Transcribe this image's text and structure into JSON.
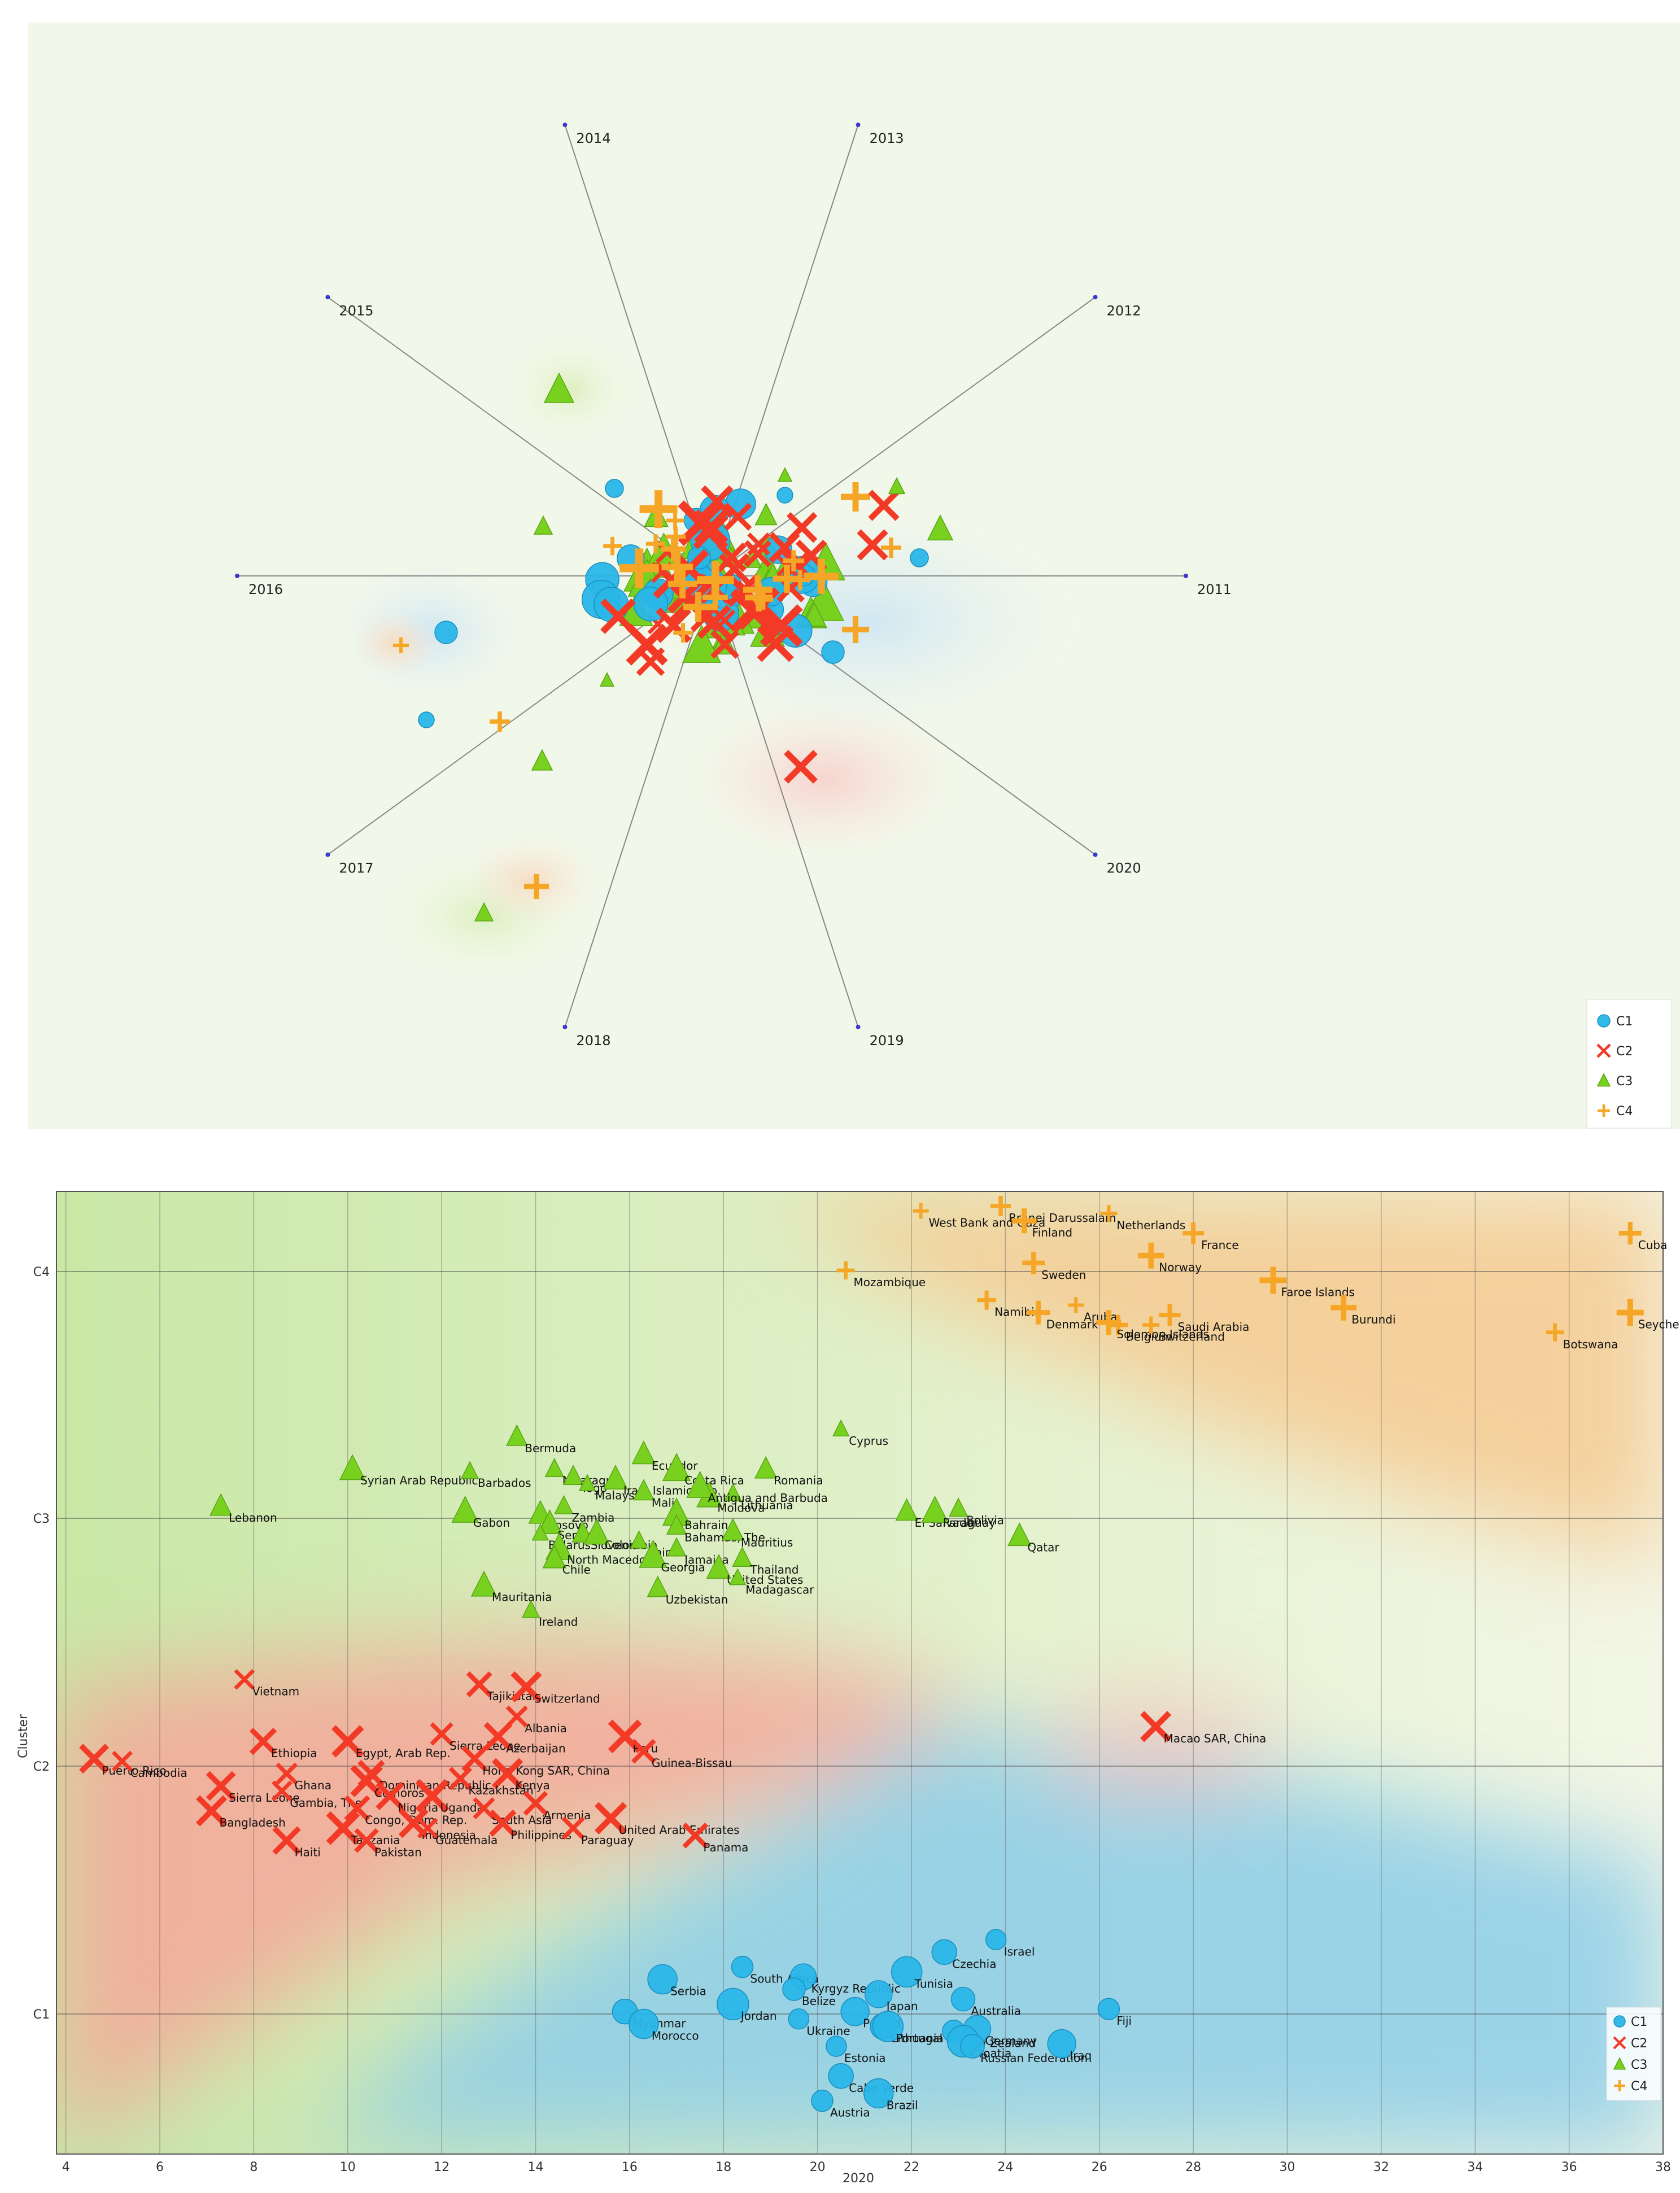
{
  "chart_data": [
    {
      "type": "radviz",
      "anchors": [
        "2011",
        "2012",
        "2013",
        "2014",
        "2015",
        "2016",
        "2017",
        "2018",
        "2019",
        "2020"
      ],
      "legend": [
        "C1",
        "C2",
        "C3",
        "C4"
      ],
      "legend_position": "bottom-right",
      "grid": false
    },
    {
      "type": "scatter",
      "xlabel": "2020",
      "ylabel": "Cluster",
      "xlim": [
        3.8,
        38
      ],
      "x_ticks": [
        "4",
        "6",
        "8",
        "10",
        "12",
        "14",
        "16",
        "18",
        "20",
        "22",
        "24",
        "26",
        "28",
        "30",
        "32",
        "34",
        "36",
        "38"
      ],
      "y_categories": [
        "C1",
        "C2",
        "C3",
        "C4"
      ],
      "grid": true,
      "legend": [
        "C1",
        "C2",
        "C3",
        "C4"
      ],
      "legend_position": "bottom-right",
      "series": [
        {
          "name": "C1",
          "points": [
            {
              "label": "Israel",
              "x": 23.8,
              "y": 0.3
            },
            {
              "label": "Czechia",
              "x": 22.7,
              "y": 0.25
            },
            {
              "label": "Serbia",
              "x": 16.7,
              "y": 0.14
            },
            {
              "label": "South Africa",
              "x": 18.4,
              "y": 0.19
            },
            {
              "label": "Kyrgyz Republic",
              "x": 19.7,
              "y": 0.15
            },
            {
              "label": "Tunisia",
              "x": 21.9,
              "y": 0.17
            },
            {
              "label": "Belize",
              "x": 19.5,
              "y": 0.1
            },
            {
              "label": "Japan",
              "x": 21.3,
              "y": 0.08
            },
            {
              "label": "Jordan",
              "x": 18.2,
              "y": 0.04
            },
            {
              "label": "Australia",
              "x": 23.1,
              "y": 0.06
            },
            {
              "label": "Poland",
              "x": 20.8,
              "y": 0.01
            },
            {
              "label": "Ukraine",
              "x": 19.6,
              "y": -0.02
            },
            {
              "label": "Myanmar",
              "x": 15.9,
              "y": 0.01
            },
            {
              "label": "Morocco",
              "x": 16.3,
              "y": -0.04
            },
            {
              "label": "Fiji",
              "x": 26.2,
              "y": 0.02
            },
            {
              "label": "Lithuania",
              "x": 21.4,
              "y": -0.05
            },
            {
              "label": "Portugal",
              "x": 21.5,
              "y": -0.05
            },
            {
              "label": "New Zealand",
              "x": 22.9,
              "y": -0.07
            },
            {
              "label": "Germany",
              "x": 23.4,
              "y": -0.06
            },
            {
              "label": "Croatia",
              "x": 23.1,
              "y": -0.11
            },
            {
              "label": "Russian Federation",
              "x": 23.3,
              "y": -0.13
            },
            {
              "label": "Iraq",
              "x": 25.2,
              "y": -0.12
            },
            {
              "label": "Estonia",
              "x": 20.4,
              "y": -0.13
            },
            {
              "label": "Cabo Verde",
              "x": 20.5,
              "y": -0.25
            },
            {
              "label": "Brazil",
              "x": 21.3,
              "y": -0.32
            },
            {
              "label": "Austria",
              "x": 20.1,
              "y": -0.35
            }
          ]
        },
        {
          "name": "C2",
          "points": [
            {
              "label": "Vietnam",
              "x": 7.8,
              "y": 1.35
            },
            {
              "label": "Tajikistan",
              "x": 12.8,
              "y": 1.33
            },
            {
              "label": "Switzerland",
              "x": 13.8,
              "y": 1.32
            },
            {
              "label": "Albania",
              "x": 13.6,
              "y": 1.2
            },
            {
              "label": "Ethiopia",
              "x": 8.2,
              "y": 1.1
            },
            {
              "label": "Egypt, Arab Rep.",
              "x": 10,
              "y": 1.1
            },
            {
              "label": "Sierra Leone",
              "x": 12,
              "y": 1.13
            },
            {
              "label": "Azerbaijan",
              "x": 13.2,
              "y": 1.12
            },
            {
              "label": "Peru",
              "x": 15.9,
              "y": 1.12
            },
            {
              "label": "Guinea-Bissau",
              "x": 16.3,
              "y": 1.06
            },
            {
              "label": "Puerto Rico",
              "x": 4.6,
              "y": 1.03
            },
            {
              "label": "Cambodia",
              "x": 5.2,
              "y": 1.02
            },
            {
              "label": "Hong Kong SAR, China",
              "x": 12.7,
              "y": 1.03
            },
            {
              "label": "Kenya",
              "x": 13.4,
              "y": 0.97
            },
            {
              "label": "Ghana",
              "x": 8.7,
              "y": 0.97
            },
            {
              "label": "Dominican Republic",
              "x": 10.5,
              "y": 0.97
            },
            {
              "label": "Comoros",
              "x": 10.4,
              "y": 0.94
            },
            {
              "label": "Kazakhstan",
              "x": 12.4,
              "y": 0.95
            },
            {
              "label": "Nigeria",
              "x": 10.9,
              "y": 0.88
            },
            {
              "label": "Uganda",
              "x": 11.8,
              "y": 0.88
            },
            {
              "label": "Armenia",
              "x": 14,
              "y": 0.85
            },
            {
              "label": "Sierra Leone",
              "x": 7.3,
              "y": 0.92
            },
            {
              "label": "Gambia, The",
              "x": 8.6,
              "y": 0.9
            },
            {
              "label": "Congo, Dem. Rep.",
              "x": 10.2,
              "y": 0.83
            },
            {
              "label": "Bangladesh",
              "x": 7.1,
              "y": 0.82
            },
            {
              "label": "South Asia",
              "x": 12.9,
              "y": 0.83
            },
            {
              "label": "Philippines",
              "x": 13.3,
              "y": 0.77
            },
            {
              "label": "United Arab Emirates",
              "x": 15.6,
              "y": 0.79
            },
            {
              "label": "Paraguay",
              "x": 14.8,
              "y": 0.75
            },
            {
              "label": "Haiti",
              "x": 8.7,
              "y": 0.7
            },
            {
              "label": "Tanzania",
              "x": 9.9,
              "y": 0.75
            },
            {
              "label": "Pakistan",
              "x": 10.4,
              "y": 0.7
            },
            {
              "label": "Indonesia",
              "x": 11.4,
              "y": 0.77
            },
            {
              "label": "Guatemala",
              "x": 11.7,
              "y": 0.75
            },
            {
              "label": "Panama",
              "x": 17.4,
              "y": 0.72
            },
            {
              "label": "Macao SAR, China",
              "x": 27.2,
              "y": 1.16
            }
          ]
        },
        {
          "name": "C3",
          "points": [
            {
              "label": "Cyprus",
              "x": 20.5,
              "y": 2.36
            },
            {
              "label": "Bermuda",
              "x": 13.6,
              "y": 2.33
            },
            {
              "label": "Syrian Arab Republic",
              "x": 10.1,
              "y": 2.2
            },
            {
              "label": "Barbados",
              "x": 12.6,
              "y": 2.19
            },
            {
              "label": "Lebanon",
              "x": 7.3,
              "y": 2.05
            },
            {
              "label": "Gabon",
              "x": 12.5,
              "y": 2.03
            },
            {
              "label": "Nicaragua",
              "x": 14.4,
              "y": 2.2
            },
            {
              "label": "Ecuador",
              "x": 16.3,
              "y": 2.26
            },
            {
              "label": "Costa Rica",
              "x": 17,
              "y": 2.2
            },
            {
              "label": "Togo",
              "x": 14.8,
              "y": 2.17
            },
            {
              "label": "Iran, Islamic Rep.",
              "x": 15.7,
              "y": 2.16
            },
            {
              "label": "Malaysia",
              "x": 15.1,
              "y": 2.14
            },
            {
              "label": "Mali",
              "x": 16.3,
              "y": 2.11
            },
            {
              "label": "Moldova",
              "x": 17.7,
              "y": 2.09
            },
            {
              "label": "Lithuania",
              "x": 18.2,
              "y": 2.1
            },
            {
              "label": "Romania",
              "x": 18.9,
              "y": 2.2
            },
            {
              "label": "Antigua and Barbuda",
              "x": 17.5,
              "y": 2.13
            },
            {
              "label": "Zambia",
              "x": 14.6,
              "y": 2.05
            },
            {
              "label": "Kosovo",
              "x": 14.1,
              "y": 2.02
            },
            {
              "label": "Bahrain",
              "x": 17,
              "y": 2.02
            },
            {
              "label": "Bahamas, The",
              "x": 17,
              "y": 1.97
            },
            {
              "label": "Senegal",
              "x": 14.3,
              "y": 1.98
            },
            {
              "label": "Belarus",
              "x": 14.1,
              "y": 1.94
            },
            {
              "label": "Slovenia",
              "x": 15,
              "y": 1.94
            },
            {
              "label": "Colombia",
              "x": 15.3,
              "y": 1.94
            },
            {
              "label": "China",
              "x": 16.2,
              "y": 1.91
            },
            {
              "label": "Mauritius",
              "x": 18.2,
              "y": 1.95
            },
            {
              "label": "North Macedonia",
              "x": 14.5,
              "y": 1.88
            },
            {
              "label": "Jamaica",
              "x": 17,
              "y": 1.88
            },
            {
              "label": "Chile",
              "x": 14.4,
              "y": 1.84
            },
            {
              "label": "Georgia",
              "x": 16.5,
              "y": 1.85
            },
            {
              "label": "Thailand",
              "x": 18.4,
              "y": 1.84
            },
            {
              "label": "United States",
              "x": 17.9,
              "y": 1.8
            },
            {
              "label": "Madagascar",
              "x": 18.3,
              "y": 1.76
            },
            {
              "label": "Uzbekistan",
              "x": 16.6,
              "y": 1.72
            },
            {
              "label": "Mauritania",
              "x": 12.9,
              "y": 1.73
            },
            {
              "label": "Ireland",
              "x": 13.9,
              "y": 1.63
            },
            {
              "label": "El Salvador",
              "x": 21.9,
              "y": 2.03
            },
            {
              "label": "Paraguay",
              "x": 22.5,
              "y": 2.03
            },
            {
              "label": "Bolivia",
              "x": 23,
              "y": 2.04
            },
            {
              "label": "Qatar",
              "x": 24.3,
              "y": 1.93
            }
          ]
        },
        {
          "name": "C4",
          "points": [
            {
              "label": "West Bank and Gaza",
              "x": 22.2,
              "y": 3.24
            },
            {
              "label": "Brunei Darussalam",
              "x": 23.9,
              "y": 3.26
            },
            {
              "label": "Finland",
              "x": 24.4,
              "y": 3.2
            },
            {
              "label": "Netherlands",
              "x": 26.2,
              "y": 3.23
            },
            {
              "label": "France",
              "x": 28,
              "y": 3.15
            },
            {
              "label": "Norway",
              "x": 27.1,
              "y": 3.06
            },
            {
              "label": "Mozambique",
              "x": 20.6,
              "y": 3
            },
            {
              "label": "Sweden",
              "x": 24.6,
              "y": 3.03
            },
            {
              "label": "Faroe Islands",
              "x": 29.7,
              "y": 2.96
            },
            {
              "label": "Namibia",
              "x": 23.6,
              "y": 2.88
            },
            {
              "label": "Denmark",
              "x": 24.7,
              "y": 2.83
            },
            {
              "label": "Aruba",
              "x": 25.5,
              "y": 2.86
            },
            {
              "label": "Belgium",
              "x": 26.4,
              "y": 2.78
            },
            {
              "label": "Solomon Islands",
              "x": 26.2,
              "y": 2.79
            },
            {
              "label": "Switzerland",
              "x": 27.1,
              "y": 2.78
            },
            {
              "label": "Saudi Arabia",
              "x": 27.5,
              "y": 2.82
            },
            {
              "label": "Burundi",
              "x": 31.2,
              "y": 2.85
            },
            {
              "label": "Botswana",
              "x": 35.7,
              "y": 2.75
            },
            {
              "label": "Cuba",
              "x": 37.3,
              "y": 3.15
            },
            {
              "label": "Seychelles",
              "x": 37.3,
              "y": 2.83
            }
          ]
        }
      ]
    }
  ],
  "colors": {
    "C1": "#29B6E8",
    "C2": "#F23A27",
    "C3": "#77D11E",
    "C4": "#F6A626"
  }
}
